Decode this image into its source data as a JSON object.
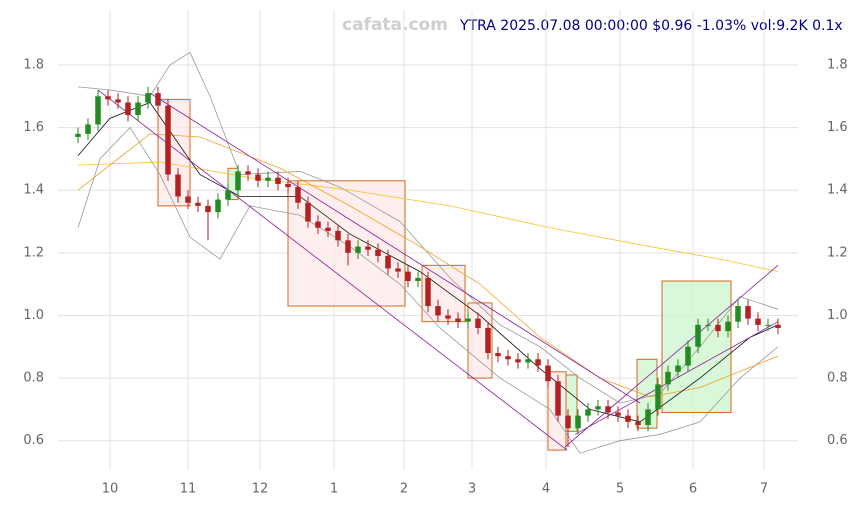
{
  "chart_data": {
    "type": "candlestick",
    "title": "YTRA 2025.07.08 00:00:00 $0.96 -1.03% vol:9.2K 0.1x",
    "watermark": "cafata.com",
    "grid": true,
    "up_color": "#228b22",
    "down_color": "#b22222",
    "xlim": [
      -2,
      72
    ],
    "ylim": [
      0.5,
      1.95
    ],
    "yticks": [
      0.6,
      0.8,
      {
        "value": 1,
        "label": "1.0"
      },
      1.2,
      1.4,
      1.6,
      1.8
    ],
    "xticks": [
      {
        "value": 3.2,
        "label": "10"
      },
      {
        "value": 11,
        "label": "11"
      },
      {
        "value": 18.2,
        "label": "12"
      },
      {
        "value": 25.6,
        "label": "1"
      },
      {
        "value": 32.6,
        "label": "2"
      },
      {
        "value": 39.4,
        "label": "3"
      },
      {
        "value": 46.8,
        "label": "4"
      },
      {
        "value": 54.2,
        "label": "5"
      },
      {
        "value": 61.5,
        "label": "6"
      },
      {
        "value": 68.6,
        "label": "7"
      }
    ],
    "x": [
      0,
      1,
      2,
      3,
      4,
      5,
      6,
      7,
      8,
      9,
      10,
      11,
      12,
      13,
      14,
      15,
      16,
      17,
      18,
      19,
      20,
      21,
      22,
      23,
      24,
      25,
      26,
      27,
      28,
      29,
      30,
      31,
      32,
      33,
      34,
      35,
      36,
      37,
      38,
      39,
      40,
      41,
      42,
      43,
      44,
      45,
      46,
      47,
      48,
      49,
      50,
      51,
      52,
      53,
      54,
      55,
      56,
      57,
      58,
      59,
      60,
      61,
      62,
      63,
      64,
      65,
      66,
      67,
      68,
      69,
      70
    ],
    "open": [
      1.57,
      1.58,
      1.61,
      1.7,
      1.69,
      1.68,
      1.64,
      1.68,
      1.71,
      1.67,
      1.45,
      1.38,
      1.36,
      1.35,
      1.33,
      1.37,
      1.4,
      1.46,
      1.45,
      1.43,
      1.44,
      1.42,
      1.41,
      1.36,
      1.3,
      1.28,
      1.27,
      1.24,
      1.2,
      1.22,
      1.21,
      1.19,
      1.15,
      1.14,
      1.11,
      1.12,
      1.03,
      1.0,
      0.99,
      0.98,
      0.99,
      0.96,
      0.88,
      0.87,
      0.86,
      0.85,
      0.86,
      0.84,
      0.79,
      0.68,
      0.64,
      0.68,
      0.7,
      0.71,
      0.69,
      0.68,
      0.66,
      0.65,
      0.7,
      0.78,
      0.82,
      0.84,
      0.9,
      0.97,
      0.97,
      0.95,
      0.98,
      1.03,
      0.99,
      0.97,
      0.97
    ],
    "high": [
      1.6,
      1.63,
      1.72,
      1.72,
      1.71,
      1.7,
      1.7,
      1.73,
      1.73,
      1.69,
      1.47,
      1.4,
      1.38,
      1.37,
      1.39,
      1.42,
      1.48,
      1.48,
      1.47,
      1.46,
      1.46,
      1.44,
      1.43,
      1.38,
      1.32,
      1.3,
      1.29,
      1.26,
      1.24,
      1.24,
      1.23,
      1.21,
      1.17,
      1.16,
      1.14,
      1.14,
      1.05,
      1.02,
      1.01,
      1.01,
      1.01,
      0.98,
      0.9,
      0.89,
      0.88,
      0.88,
      0.88,
      0.86,
      0.81,
      0.7,
      0.7,
      0.72,
      0.73,
      0.73,
      0.71,
      0.7,
      0.68,
      0.72,
      0.8,
      0.84,
      0.86,
      0.92,
      0.99,
      0.99,
      0.99,
      1.0,
      1.05,
      1.05,
      1.01,
      0.99,
      0.99
    ],
    "low": [
      1.55,
      1.56,
      1.59,
      1.67,
      1.66,
      1.62,
      1.62,
      1.66,
      1.65,
      1.43,
      1.36,
      1.34,
      1.33,
      1.24,
      1.31,
      1.35,
      1.38,
      1.43,
      1.41,
      1.41,
      1.4,
      1.39,
      1.34,
      1.28,
      1.26,
      1.25,
      1.22,
      1.16,
      1.18,
      1.19,
      1.17,
      1.13,
      1.12,
      1.09,
      1.09,
      1.01,
      0.98,
      0.97,
      0.96,
      0.96,
      0.94,
      0.86,
      0.85,
      0.84,
      0.83,
      0.83,
      0.82,
      0.77,
      0.66,
      0.58,
      0.62,
      0.66,
      0.68,
      0.67,
      0.66,
      0.64,
      0.63,
      0.63,
      0.68,
      0.76,
      0.8,
      0.82,
      0.88,
      0.95,
      0.93,
      0.93,
      0.96,
      0.97,
      0.95,
      0.95,
      0.94
    ],
    "close": [
      1.58,
      1.61,
      1.7,
      1.69,
      1.68,
      1.64,
      1.68,
      1.71,
      1.67,
      1.45,
      1.38,
      1.36,
      1.35,
      1.33,
      1.37,
      1.4,
      1.46,
      1.45,
      1.43,
      1.44,
      1.42,
      1.41,
      1.36,
      1.3,
      1.28,
      1.27,
      1.24,
      1.2,
      1.22,
      1.21,
      1.19,
      1.15,
      1.14,
      1.11,
      1.12,
      1.03,
      1.0,
      0.99,
      0.98,
      0.99,
      0.96,
      0.88,
      0.87,
      0.86,
      0.85,
      0.86,
      0.84,
      0.79,
      0.68,
      0.64,
      0.68,
      0.7,
      0.71,
      0.69,
      0.68,
      0.66,
      0.65,
      0.7,
      0.78,
      0.82,
      0.84,
      0.9,
      0.97,
      0.97,
      0.95,
      0.98,
      1.03,
      0.99,
      0.97,
      0.97,
      0.96
    ],
    "boxes": [
      {
        "fill": "#fde8e8",
        "x0": 8,
        "x1": 11.2,
        "y0": 1.35,
        "y1": 1.69
      },
      {
        "fill": "#ccf5cc",
        "x0": 15,
        "x1": 16,
        "y0": 1.37,
        "y1": 1.47
      },
      {
        "fill": "#fde8e8",
        "x0": 21,
        "x1": 32.7,
        "y0": 1.03,
        "y1": 1.43
      },
      {
        "fill": "#fde8e8",
        "x0": 34.4,
        "x1": 38.7,
        "y0": 0.98,
        "y1": 1.16
      },
      {
        "fill": "#fde8e8",
        "x0": 39,
        "x1": 41.4,
        "y0": 0.8,
        "y1": 1.04
      },
      {
        "fill": "#fde8e8",
        "x0": 47,
        "x1": 48.8,
        "y0": 0.57,
        "y1": 0.82
      },
      {
        "fill": "#ccf5cc",
        "x0": 48.8,
        "x1": 49.9,
        "y0": 0.63,
        "y1": 0.81
      },
      {
        "fill": "#ccf5cc",
        "x0": 55.9,
        "x1": 57.9,
        "y0": 0.64,
        "y1": 0.86
      },
      {
        "fill": "#ccf5cc",
        "x0": 58.4,
        "x1": 65.3,
        "y0": 0.69,
        "y1": 1.11
      }
    ],
    "trendlines": [
      {
        "color": "#8b1a9b",
        "x": [
          2,
          48.9
        ],
        "values": [
          1.72,
          0.57
        ]
      },
      {
        "color": "#8b1a9b",
        "x": [
          7.2,
          56.2
        ],
        "values": [
          1.71,
          0.72
        ]
      },
      {
        "color": "#8b1a9b",
        "x": [
          48.7,
          70
        ],
        "values": [
          0.58,
          1.16
        ]
      },
      {
        "color": "#8b1a9b",
        "x": [
          49.7,
          70
        ],
        "values": [
          0.62,
          0.98
        ]
      }
    ],
    "overlays": [
      {
        "color": "#999999",
        "x": [
          0,
          3.2,
          7.2,
          9.2,
          11.2,
          13.2,
          16.2,
          22.2,
          26.2,
          32.2,
          37.2,
          42.2,
          46.2,
          50.2,
          54.2,
          58.2,
          62.2,
          66.2,
          70
        ],
        "values": [
          1.73,
          1.72,
          1.7,
          1.8,
          1.84,
          1.7,
          1.45,
          1.46,
          1.41,
          1.3,
          1.12,
          0.97,
          0.9,
          0.8,
          0.72,
          0.75,
          0.9,
          1.06,
          1.02
        ]
      },
      {
        "color": "#999999",
        "x": [
          0,
          2.2,
          5.2,
          8.2,
          11.2,
          14.2,
          17.2,
          22.2,
          27.2,
          32.2,
          36.2,
          42.2,
          47.2,
          50.2,
          54.2,
          58.2,
          62.2,
          66.2,
          70
        ],
        "values": [
          1.28,
          1.5,
          1.6,
          1.45,
          1.25,
          1.18,
          1.35,
          1.32,
          1.22,
          1.1,
          0.96,
          0.8,
          0.7,
          0.56,
          0.6,
          0.62,
          0.66,
          0.8,
          0.9
        ]
      },
      {
        "color": "#f4c430",
        "x": [
          0,
          8.2,
          17.2,
          27.2,
          37.2,
          47.2,
          57.2,
          64.2,
          70
        ],
        "values": [
          1.48,
          1.49,
          1.44,
          1.4,
          1.35,
          1.28,
          1.22,
          1.18,
          1.14
        ]
      },
      {
        "color": "#f4a020",
        "x": [
          0,
          7.2,
          12.2,
          20.2,
          27.2,
          34.2,
          40.2,
          46.2,
          52.2,
          57.2,
          62.2,
          70
        ],
        "values": [
          1.4,
          1.58,
          1.57,
          1.47,
          1.35,
          1.22,
          1.1,
          0.93,
          0.8,
          0.74,
          0.77,
          0.87
        ]
      },
      {
        "color": "#111111",
        "x": [
          0,
          3.2,
          7.2,
          12.2,
          16.2,
          22.2,
          27.2,
          34.2,
          40.2,
          46.2,
          51.2,
          56.2,
          62.2,
          67.2,
          70
        ],
        "values": [
          1.51,
          1.63,
          1.68,
          1.45,
          1.38,
          1.38,
          1.26,
          1.14,
          1.0,
          0.83,
          0.7,
          0.66,
          0.8,
          0.93,
          0.97
        ]
      }
    ]
  }
}
